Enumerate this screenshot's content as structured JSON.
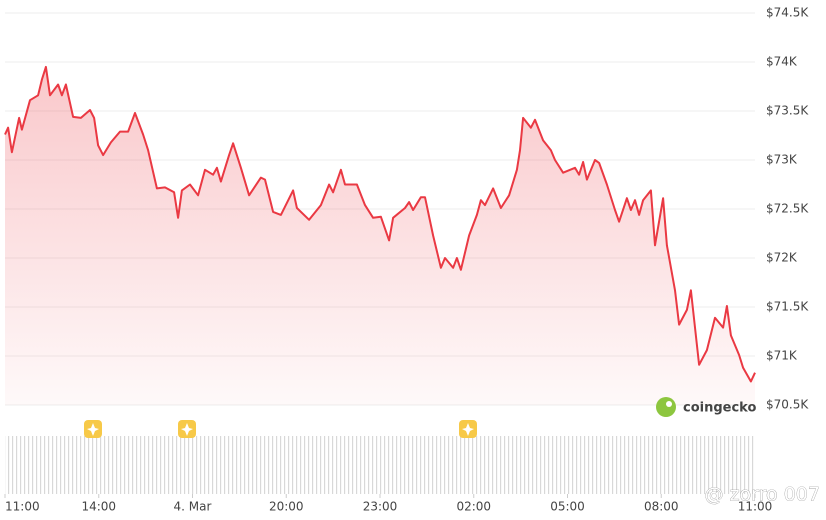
{
  "chart_data": {
    "type": "line",
    "color": "#ea3943",
    "xlim": [
      0,
      24
    ],
    "xticks": [
      {
        "value": 0,
        "label": "11:00"
      },
      {
        "value": 3,
        "label": "14:00"
      },
      {
        "value": 6,
        "label": "4. Mar"
      },
      {
        "value": 9,
        "label": "20:00"
      },
      {
        "value": 12,
        "label": "23:00"
      },
      {
        "value": 15,
        "label": "02:00"
      },
      {
        "value": 18,
        "label": "05:00"
      },
      {
        "value": 21,
        "label": "08:00"
      },
      {
        "value": 24,
        "label": "11:00"
      }
    ],
    "ylim": [
      70500,
      74500
    ],
    "yticks": [
      {
        "value": 70500,
        "label": "$70.5K"
      },
      {
        "value": 71000,
        "label": "$71K"
      },
      {
        "value": 71500,
        "label": "$71.5K"
      },
      {
        "value": 72000,
        "label": "$72K"
      },
      {
        "value": 72500,
        "label": "$72.5K"
      },
      {
        "value": 73000,
        "label": "$73K"
      },
      {
        "value": 73500,
        "label": "$73.5K"
      },
      {
        "value": 74000,
        "label": "$74K"
      },
      {
        "value": 74500,
        "label": "$74.5K"
      }
    ],
    "grid": true,
    "x": [
      0,
      0.1,
      0.22,
      0.45,
      0.54,
      0.8,
      1.06,
      1.18,
      1.31,
      1.44,
      1.7,
      1.82,
      1.95,
      2.18,
      2.43,
      2.72,
      2.85,
      2.98,
      3.14,
      3.39,
      3.68,
      3.94,
      4.16,
      4.42,
      4.58,
      4.86,
      5.12,
      5.41,
      5.54,
      5.66,
      5.92,
      6.18,
      6.4,
      6.66,
      6.78,
      6.91,
      7.17,
      7.3,
      7.55,
      7.81,
      8.19,
      8.32,
      8.58,
      8.83,
      9.22,
      9.34,
      9.73,
      10.11,
      10.37,
      10.5,
      10.75,
      10.88,
      11.26,
      11.52,
      11.78,
      12.03,
      12.29,
      12.42,
      12.8,
      12.93,
      13.06,
      13.31,
      13.44,
      13.7,
      13.95,
      14.08,
      14.34,
      14.46,
      14.59,
      14.85,
      15.1,
      15.23,
      15.36,
      15.62,
      15.87,
      16.13,
      16.38,
      16.48,
      16.58,
      16.83,
      16.96,
      17.22,
      17.47,
      17.6,
      17.86,
      18.24,
      18.37,
      18.5,
      18.62,
      18.88,
      19.01,
      19.26,
      19.52,
      19.65,
      19.9,
      20.03,
      20.16,
      20.29,
      20.42,
      20.67,
      20.8,
      21.06,
      21.18,
      21.44,
      21.57,
      21.82,
      21.95,
      22.21,
      22.46,
      22.72,
      22.98,
      23.1,
      23.23,
      23.49,
      23.62,
      23.87,
      24
    ],
    "values": [
      73260,
      73330,
      73080,
      73430,
      73310,
      73610,
      73660,
      73820,
      73950,
      73660,
      73770,
      73660,
      73770,
      73440,
      73430,
      73510,
      73430,
      73150,
      73050,
      73180,
      73290,
      73290,
      73480,
      73260,
      73100,
      72710,
      72720,
      72670,
      72410,
      72690,
      72750,
      72640,
      72900,
      72850,
      72920,
      72780,
      73050,
      73170,
      72920,
      72640,
      72820,
      72800,
      72470,
      72440,
      72690,
      72510,
      72390,
      72540,
      72750,
      72670,
      72900,
      72750,
      72750,
      72540,
      72410,
      72420,
      72180,
      72410,
      72510,
      72570,
      72490,
      72620,
      72620,
      72230,
      71900,
      72000,
      71900,
      72000,
      71880,
      72230,
      72440,
      72590,
      72540,
      72710,
      72510,
      72640,
      72900,
      73100,
      73430,
      73330,
      73410,
      73200,
      73100,
      73000,
      72870,
      72920,
      72850,
      72980,
      72800,
      73000,
      72970,
      72750,
      72490,
      72370,
      72610,
      72490,
      72590,
      72440,
      72590,
      72690,
      72130,
      72610,
      72130,
      71670,
      71320,
      71470,
      71670,
      70910,
      71060,
      71390,
      71290,
      71510,
      71210,
      71010,
      70880,
      70740,
      70830
    ]
  },
  "brand": "coingecko",
  "watermark": "@ zorro 007"
}
